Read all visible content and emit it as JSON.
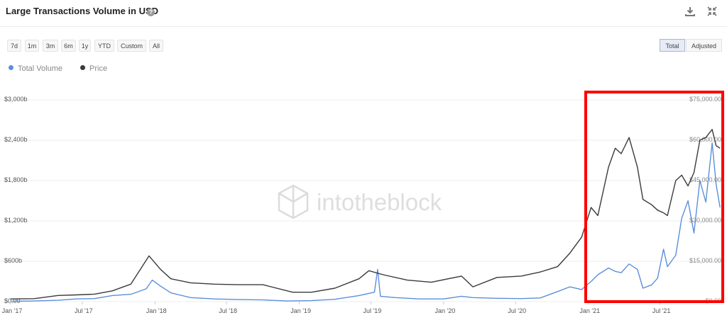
{
  "header": {
    "title": "Large Transactions Volume in USD",
    "help_icon": "question-circle-icon",
    "download_icon": "download-icon",
    "collapse_icon": "collapse-icon"
  },
  "ranges": [
    "7d",
    "1m",
    "3m",
    "6m",
    "1y",
    "YTD",
    "Custom",
    "All"
  ],
  "toggles": {
    "total": "Total",
    "adjusted": "Adjusted",
    "active": "Total"
  },
  "watermark": "intotheblock",
  "colors": {
    "volume": "#5b8fd9",
    "price": "#3a3a3a",
    "highlight": "#ff0000"
  },
  "chart_data": {
    "type": "line",
    "legend_position": "top-left",
    "grid": true,
    "x_ticks": [
      "Jan '17",
      "Jul '17",
      "Jan '18",
      "Jul '18",
      "Jan '19",
      "Jul '19",
      "Jan '20",
      "Jul '20",
      "Jan '21",
      "Jul '21"
    ],
    "y_left": {
      "ticks": [
        "$0.00",
        "$600b",
        "$1,200b",
        "$1,800b",
        "$2,400b",
        "$3,000b"
      ],
      "range": [
        0,
        3000
      ],
      "unit": "USD billions"
    },
    "y_right": {
      "ticks": [
        "$0.00",
        "$15,000.00",
        "$30,000.00",
        "$45,000.00",
        "$60,000.00",
        "$75,000.00"
      ],
      "range": [
        0,
        75000
      ],
      "unit": "USD"
    },
    "series": [
      {
        "name": "Total Volume",
        "axis": "left",
        "x": [
          "2017-01-01",
          "2017-03-01",
          "2017-05-01",
          "2017-06-15",
          "2017-08-01",
          "2017-09-15",
          "2017-11-01",
          "2017-12-10",
          "2017-12-25",
          "2018-01-15",
          "2018-02-10",
          "2018-04-01",
          "2018-06-01",
          "2018-08-01",
          "2018-10-01",
          "2018-12-01",
          "2019-02-01",
          "2019-04-01",
          "2019-06-01",
          "2019-07-10",
          "2019-07-18",
          "2019-07-25",
          "2019-09-01",
          "2019-11-01",
          "2020-01-01",
          "2020-02-15",
          "2020-03-15",
          "2020-05-15",
          "2020-07-15",
          "2020-09-01",
          "2020-10-15",
          "2020-11-15",
          "2020-12-15",
          "2021-01-08",
          "2021-01-25",
          "2021-02-21",
          "2021-03-10",
          "2021-03-25",
          "2021-04-14",
          "2021-05-05",
          "2021-05-19",
          "2021-06-10",
          "2021-06-25",
          "2021-07-10",
          "2021-07-20",
          "2021-08-10",
          "2021-08-25",
          "2021-09-10",
          "2021-09-25",
          "2021-10-10",
          "2021-10-25",
          "2021-11-10",
          "2021-11-20",
          "2021-11-30"
        ],
        "values": [
          5,
          10,
          20,
          40,
          45,
          90,
          110,
          190,
          320,
          230,
          130,
          60,
          40,
          30,
          25,
          10,
          15,
          35,
          90,
          140,
          480,
          80,
          60,
          40,
          40,
          80,
          60,
          50,
          45,
          55,
          150,
          220,
          180,
          300,
          400,
          500,
          450,
          430,
          560,
          480,
          200,
          250,
          350,
          780,
          520,
          690,
          1240,
          1500,
          1020,
          1800,
          1480,
          2360,
          1750,
          1400
        ]
      },
      {
        "name": "Price",
        "axis": "right",
        "x": [
          "2017-01-01",
          "2017-03-01",
          "2017-05-01",
          "2017-06-15",
          "2017-08-01",
          "2017-09-15",
          "2017-11-01",
          "2017-12-17",
          "2018-01-15",
          "2018-02-10",
          "2018-04-01",
          "2018-06-01",
          "2018-08-01",
          "2018-10-01",
          "2018-12-15",
          "2019-02-01",
          "2019-04-01",
          "2019-06-01",
          "2019-06-26",
          "2019-08-01",
          "2019-10-01",
          "2019-12-01",
          "2020-02-15",
          "2020-03-15",
          "2020-05-15",
          "2020-07-15",
          "2020-09-01",
          "2020-10-15",
          "2020-11-15",
          "2020-12-15",
          "2021-01-08",
          "2021-01-25",
          "2021-02-21",
          "2021-03-10",
          "2021-03-25",
          "2021-04-14",
          "2021-05-05",
          "2021-05-19",
          "2021-06-10",
          "2021-06-25",
          "2021-07-10",
          "2021-07-20",
          "2021-08-10",
          "2021-08-25",
          "2021-09-10",
          "2021-09-25",
          "2021-10-10",
          "2021-10-25",
          "2021-11-10",
          "2021-11-20",
          "2021-11-30"
        ],
        "values": [
          1000,
          1100,
          2300,
          2500,
          2800,
          4000,
          6500,
          17000,
          12000,
          8500,
          7000,
          6500,
          6300,
          6300,
          3500,
          3500,
          5000,
          8500,
          11500,
          10000,
          8000,
          7200,
          9500,
          5500,
          9000,
          9500,
          11000,
          13000,
          18000,
          24000,
          35000,
          32000,
          50000,
          57000,
          55000,
          61000,
          50000,
          38000,
          36000,
          34000,
          33000,
          32000,
          45000,
          47000,
          43000,
          48000,
          60000,
          61000,
          64000,
          58000,
          57000
        ]
      }
    ]
  }
}
